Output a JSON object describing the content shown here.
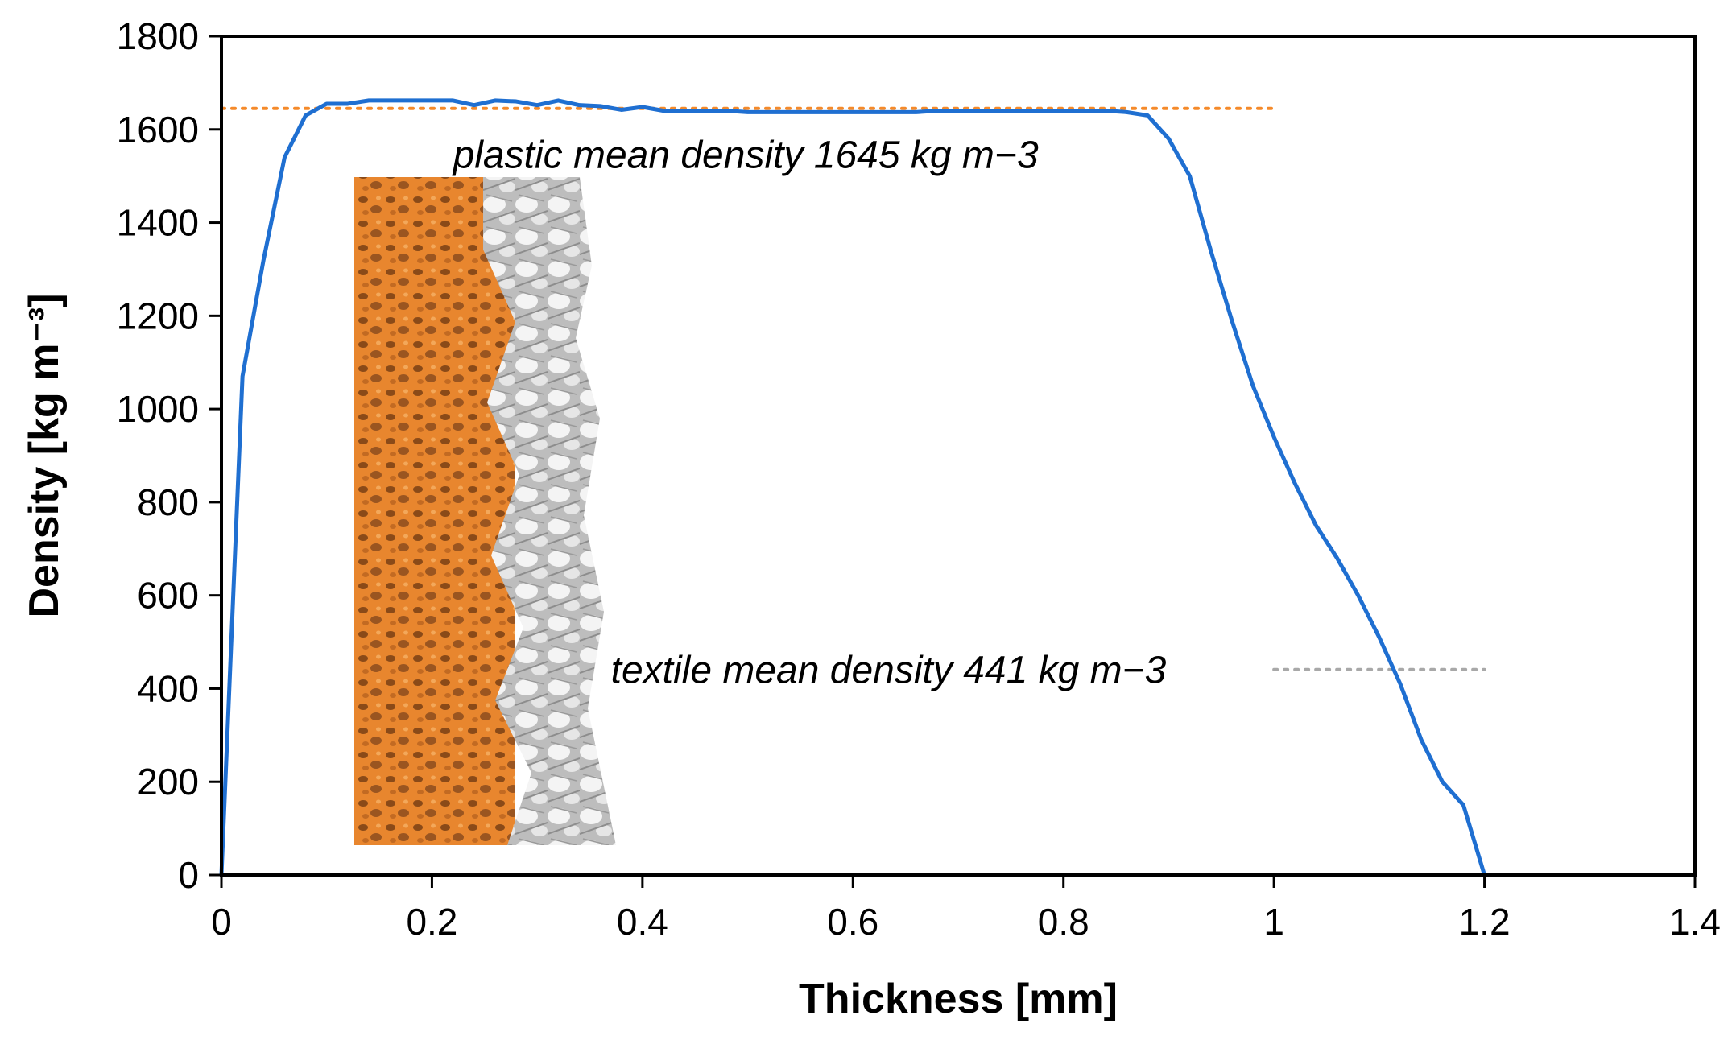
{
  "colors": {
    "line": "#1f6fd1",
    "plastic_ref": "#f58a2a",
    "textile_ref": "#a8a8a8",
    "axis": "#000000",
    "photo_plastic": "#e8862e",
    "photo_textile": "#c9c9c9"
  },
  "chart_data": {
    "type": "line",
    "xlabel": "Thickness [mm]",
    "ylabel": "Density [kg m⁻³]",
    "xlim": [
      0,
      1.4
    ],
    "ylim": [
      0,
      1800
    ],
    "xticks": [
      "0",
      "0.2",
      "0.4",
      "0.6",
      "0.8",
      "1",
      "1.2",
      "1.4"
    ],
    "yticks": [
      "0",
      "200",
      "400",
      "600",
      "800",
      "1000",
      "1200",
      "1400",
      "1600",
      "1800"
    ],
    "grid": false,
    "series": [
      {
        "x": [
          0,
          0.02,
          0.04,
          0.06,
          0.08,
          0.1,
          0.12,
          0.14,
          0.16,
          0.18,
          0.2,
          0.22,
          0.24,
          0.26,
          0.28,
          0.3,
          0.32,
          0.34,
          0.36,
          0.38,
          0.4,
          0.42,
          0.44,
          0.46,
          0.48,
          0.5,
          0.52,
          0.54,
          0.56,
          0.58,
          0.6,
          0.62,
          0.64,
          0.66,
          0.68,
          0.7,
          0.72,
          0.74,
          0.76,
          0.78,
          0.8,
          0.82,
          0.84,
          0.86,
          0.88,
          0.9,
          0.92,
          0.94,
          0.96,
          0.98,
          1.0,
          1.02,
          1.04,
          1.06,
          1.08,
          1.1,
          1.12,
          1.14,
          1.16,
          1.18,
          1.2
        ],
        "values": [
          0,
          1070,
          1320,
          1540,
          1630,
          1655,
          1655,
          1662,
          1662,
          1662,
          1662,
          1662,
          1652,
          1662,
          1660,
          1652,
          1662,
          1652,
          1650,
          1642,
          1648,
          1640,
          1640,
          1640,
          1640,
          1637,
          1637,
          1637,
          1637,
          1637,
          1637,
          1637,
          1637,
          1637,
          1640,
          1640,
          1640,
          1640,
          1640,
          1640,
          1640,
          1640,
          1640,
          1637,
          1630,
          1580,
          1500,
          1340,
          1190,
          1050,
          940,
          840,
          750,
          680,
          600,
          510,
          410,
          290,
          200,
          150,
          0
        ]
      }
    ],
    "reference_lines": [
      {
        "value": 1645,
        "x_range": [
          0,
          1.0
        ],
        "label": "plastic mean density 1645 kg m−3",
        "label_x": 0.22,
        "label_y": 1545
      },
      {
        "value": 441,
        "x_range": [
          1.0,
          1.2
        ],
        "label": "textile mean density 441 kg m−3",
        "label_x": 0.37,
        "label_y": 440
      }
    ]
  }
}
